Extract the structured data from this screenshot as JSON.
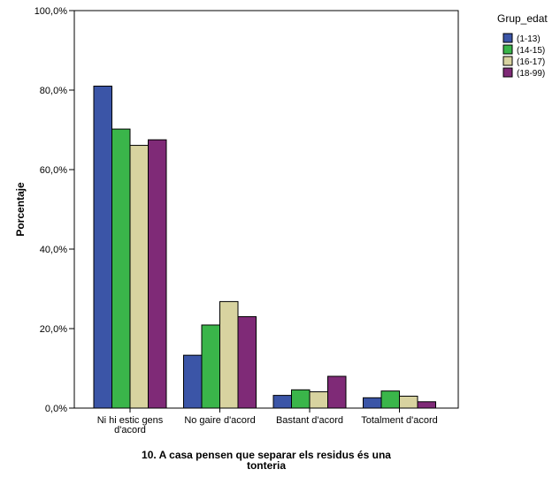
{
  "chart_data": {
    "type": "bar",
    "xlabel": "10. A casa pensen que separar els residus és una tonteria",
    "xlabel_lines": [
      "10. A casa pensen que separar els residus és una",
      "tonteria"
    ],
    "ylabel": "Porcentaje",
    "ylim": [
      0,
      100
    ],
    "yticks": [
      0,
      20,
      40,
      60,
      80,
      100
    ],
    "ytick_labels": [
      "0,0%",
      "20,0%",
      "40,0%",
      "60,0%",
      "80,0%",
      "100,0%"
    ],
    "grid": false,
    "categories": [
      "Ni hi estic gens d'acord",
      "No gaire d'acord",
      "Bastant d'acord",
      "Totalment d'acord"
    ],
    "category_label_lines": [
      [
        "Ni hi estic gens",
        "d'acord"
      ],
      [
        "No gaire d'acord"
      ],
      [
        "Bastant d'acord"
      ],
      [
        "Totalment d'acord"
      ]
    ],
    "legend": {
      "title": "Grup_edat",
      "placement": "top-right"
    },
    "series": [
      {
        "name": "(1-13)",
        "color": "#3b55a7",
        "values": [
          81.0,
          13.3,
          3.2,
          2.6
        ]
      },
      {
        "name": "(14-15)",
        "color": "#3ab54a",
        "values": [
          70.2,
          20.9,
          4.6,
          4.3
        ]
      },
      {
        "name": "(16-17)",
        "color": "#d8d3a0",
        "values": [
          66.1,
          26.8,
          4.1,
          3.0
        ]
      },
      {
        "name": "(18-99)",
        "color": "#7f2a77",
        "values": [
          67.5,
          23.0,
          8.0,
          1.6
        ]
      }
    ]
  }
}
